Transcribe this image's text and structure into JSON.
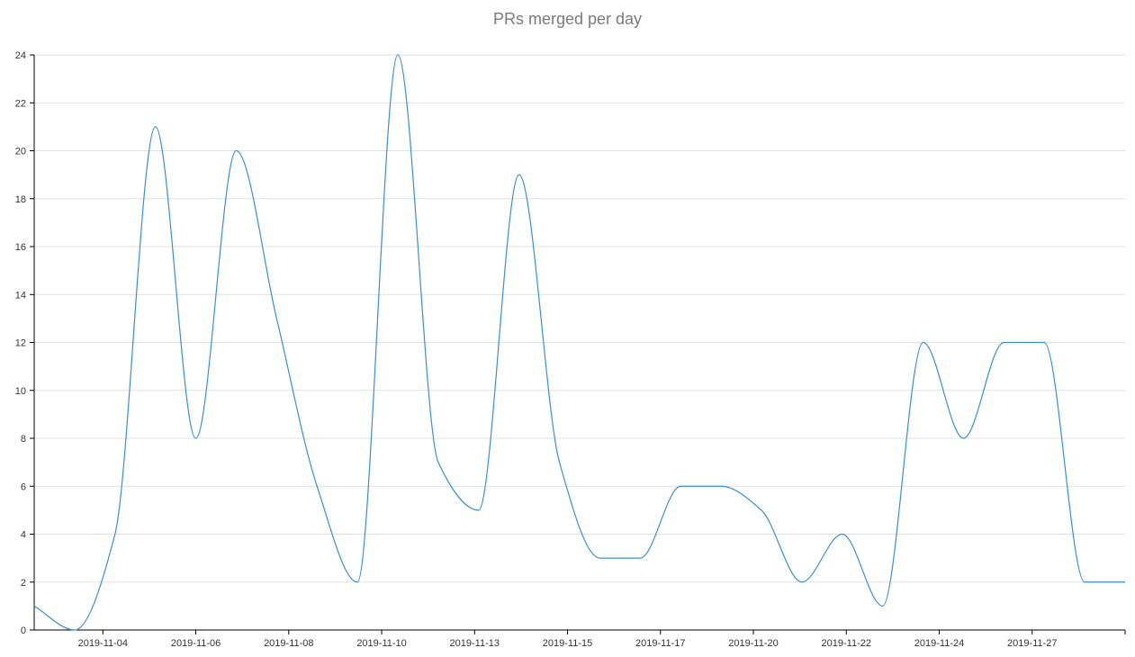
{
  "chart_data": {
    "type": "line",
    "title": "PRs merged per day",
    "xlabel": "",
    "ylabel": "",
    "x": [
      "2019-11-02",
      "2019-11-03",
      "2019-11-04",
      "2019-11-05",
      "2019-11-06",
      "2019-11-07",
      "2019-11-08",
      "2019-11-09",
      "2019-11-10",
      "2019-11-11",
      "2019-11-12",
      "2019-11-13",
      "2019-11-14",
      "2019-11-15",
      "2019-11-16",
      "2019-11-17",
      "2019-11-18",
      "2019-11-19",
      "2019-11-20",
      "2019-11-21",
      "2019-11-22",
      "2019-11-23",
      "2019-11-24",
      "2019-11-25",
      "2019-11-26",
      "2019-11-27",
      "2019-11-28",
      "2019-11-29"
    ],
    "series": [
      {
        "values": [
          1,
          0,
          4,
          21,
          8,
          20,
          13,
          6,
          2,
          24,
          7,
          5,
          19,
          7,
          3,
          3,
          6,
          6,
          5,
          2,
          4,
          1,
          12,
          8,
          12,
          12,
          2,
          2
        ]
      }
    ],
    "ylim": [
      0,
      24
    ],
    "yticks": [
      "0",
      "2",
      "4",
      "6",
      "8",
      "10",
      "12",
      "14",
      "16",
      "18",
      "20",
      "22",
      "24"
    ],
    "xticks": [
      {
        "label": "2019-11-04",
        "pos": 1.7
      },
      {
        "label": "2019-11-06",
        "pos": 4.0
      },
      {
        "label": "2019-11-08",
        "pos": 6.3
      },
      {
        "label": "2019-11-10",
        "pos": 8.6
      },
      {
        "label": "2019-11-13",
        "pos": 10.9
      },
      {
        "label": "2019-11-15",
        "pos": 13.2
      },
      {
        "label": "2019-11-17",
        "pos": 15.5
      },
      {
        "label": "2019-11-20",
        "pos": 17.8
      },
      {
        "label": "2019-11-22",
        "pos": 20.1
      },
      {
        "label": "2019-11-24",
        "pos": 22.4
      },
      {
        "label": "2019-11-27",
        "pos": 24.7
      }
    ],
    "grid": true,
    "line_color": "#3a8fd0",
    "grid_color": "#e2e2e2",
    "axis_color": "#000000"
  }
}
